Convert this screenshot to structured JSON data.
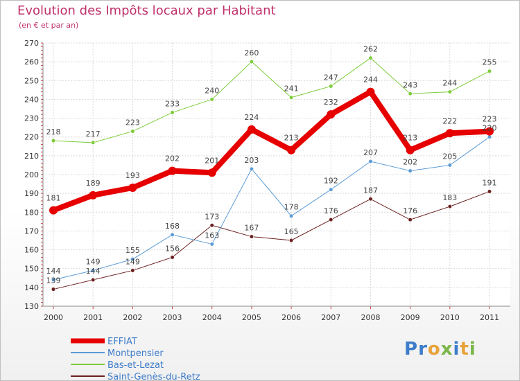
{
  "header": {
    "title": "Evolution des Impôts locaux par Habitant",
    "subtitle": "(en € et par an)"
  },
  "logo": {
    "letters": [
      {
        "ch": "P",
        "color": "#3d7cc9"
      },
      {
        "ch": "r",
        "color": "#3d7cc9"
      },
      {
        "ch": "o",
        "color": "#e8a33a"
      },
      {
        "ch": "x",
        "color": "#7ab648"
      },
      {
        "ch": "i",
        "color": "#3d7cc9"
      },
      {
        "ch": "t",
        "color": "#e8a33a"
      },
      {
        "ch": "i",
        "color": "#7ab648"
      }
    ]
  },
  "chart_data": {
    "type": "line",
    "title": "Evolution des Impôts locaux par Habitant",
    "subtitle": "(en € et par an)",
    "xlabel": "",
    "ylabel": "",
    "categories": [
      "2000",
      "2001",
      "2002",
      "2003",
      "2004",
      "2005",
      "2006",
      "2007",
      "2008",
      "2009",
      "2010",
      "2011"
    ],
    "ylim": [
      130,
      270
    ],
    "yticks": [
      130,
      140,
      150,
      160,
      170,
      180,
      190,
      200,
      210,
      220,
      230,
      240,
      250,
      260,
      270
    ],
    "grid": true,
    "legend_position": "bottom-left",
    "series": [
      {
        "name": "Saint-Genès-du-Retz",
        "color": "#6b2020",
        "width": 1,
        "marker": 2.8,
        "label_pos": "above",
        "values": [
          139,
          144,
          149,
          156,
          173,
          167,
          165,
          176,
          187,
          176,
          183,
          191
        ]
      },
      {
        "name": "Montpensier",
        "color": "#5b9bd5",
        "width": 1,
        "marker": 2.8,
        "label_pos": "above",
        "values": [
          144,
          149,
          155,
          168,
          163,
          203,
          178,
          192,
          207,
          202,
          205,
          220
        ]
      },
      {
        "name": "Bas-et-Lezat",
        "color": "#7dcc3a",
        "width": 1,
        "marker": 2.8,
        "label_pos": "above",
        "values": [
          218,
          217,
          223,
          233,
          240,
          260,
          241,
          247,
          262,
          243,
          244,
          255
        ]
      },
      {
        "name": "EFFIAT",
        "color": "#e60000",
        "width": 8,
        "marker": 6,
        "label_pos": "above",
        "values": [
          181,
          189,
          193,
          202,
          201,
          224,
          213,
          232,
          244,
          213,
          222,
          223
        ]
      }
    ],
    "legend_order": [
      "EFFIAT",
      "Montpensier",
      "Bas-et-Lezat",
      "Saint-Genès-du-Retz"
    ]
  }
}
